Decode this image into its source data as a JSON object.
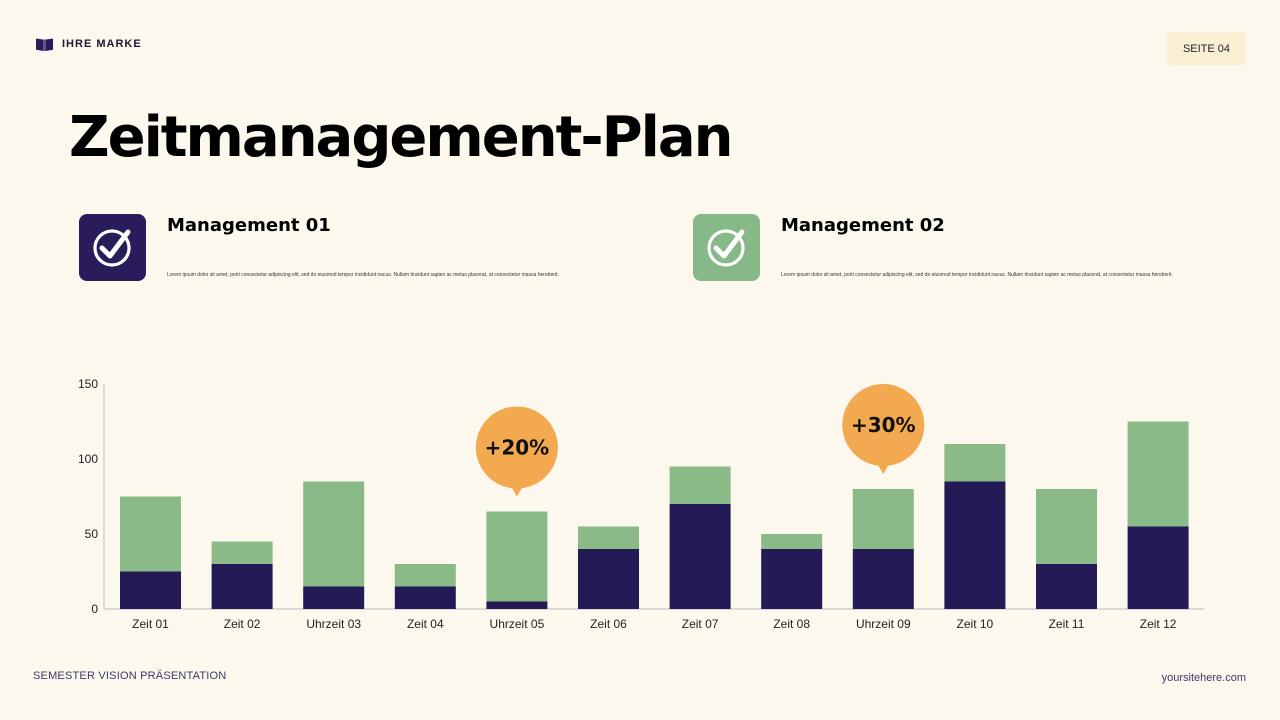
{
  "brand": {
    "name": "IHRE MARKE",
    "icon": "book-icon"
  },
  "page_label": "SEITE 04",
  "title": "Zeitmanagement-Plan",
  "cards": [
    {
      "title": "Management 01",
      "text": "Lorem ipsum dolor sit amet, porti consectetur adipiscing elit, sed do eiusmod tempor incididunt nacus. Nullam tincidunt sapien ac metus placerat, at consectetur massa hendrerit.",
      "icon": "check-circle-icon",
      "color": "#2a1b5a"
    },
    {
      "title": "Management 02",
      "text": "Lorem ipsum dolor sit amet, porti consectetur adipiscing elit, sed do eiusmod tempor incididunt nacus. Nullam tincidunt sapien ac metus placerat, at consectetur massa hendrerit.",
      "icon": "check-circle-icon",
      "color": "#86b888"
    }
  ],
  "chart_data": {
    "type": "bar",
    "stacked": true,
    "categories": [
      "Zeit 01",
      "Zeit 02",
      "Uhrzeit 03",
      "Zeit 04",
      "Uhrzeit 05",
      "Zeit 06",
      "Zeit 07",
      "Zeit 08",
      "Uhrzeit 09",
      "Zeit 10",
      "Zeit 11",
      "Zeit 12"
    ],
    "series": [
      {
        "values": [
          25,
          30,
          15,
          15,
          5,
          40,
          70,
          40,
          40,
          85,
          30,
          55
        ],
        "color": "#241a55"
      },
      {
        "values": [
          50,
          15,
          70,
          15,
          60,
          15,
          25,
          10,
          40,
          25,
          50,
          70
        ],
        "color": "#8aba88"
      }
    ],
    "ylim": [
      0,
      150
    ],
    "yticks": [
      0,
      50,
      100,
      150
    ],
    "grid": false,
    "legend": "none",
    "annotations": [
      {
        "category": "Uhrzeit 05",
        "text": "+20%",
        "color": "#f2a950"
      },
      {
        "category": "Uhrzeit 09",
        "text": "+30%",
        "color": "#f2a950"
      }
    ]
  },
  "footer": {
    "left": "SEMESTER VISION PRÄSENTATION",
    "right": "yoursitehere.com"
  }
}
